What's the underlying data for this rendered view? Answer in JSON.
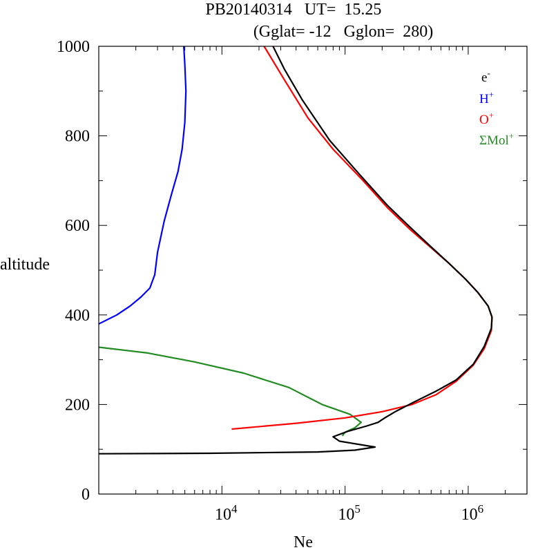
{
  "chart_data": {
    "type": "line",
    "title_line1": "PB20140314   UT=  15.25",
    "title_line2": "(Gglat= -12   Gglon=  280)",
    "xlabel": "Ne",
    "ylabel": "altitude",
    "x_scale": "log",
    "xlim": [
      1000,
      3000000
    ],
    "ylim": [
      0,
      1000
    ],
    "y_ticks": [
      0,
      200,
      400,
      600,
      800,
      1000
    ],
    "x_ticks": [
      {
        "value": 10000,
        "base": "10",
        "exp": "4"
      },
      {
        "value": 100000,
        "base": "10",
        "exp": "5"
      },
      {
        "value": 1000000,
        "base": "10",
        "exp": "6"
      }
    ],
    "legend_position": "top-right",
    "series": [
      {
        "name": "e-",
        "label_base": "e",
        "label_sup": "-",
        "color": "#000000",
        "points": [
          [
            1000,
            90
          ],
          [
            8000,
            91
          ],
          [
            60000,
            94
          ],
          [
            120000,
            98
          ],
          [
            175000,
            105
          ],
          [
            90000,
            118
          ],
          [
            80000,
            128
          ],
          [
            105000,
            140
          ],
          [
            150000,
            152
          ],
          [
            185000,
            160
          ],
          [
            210000,
            170
          ],
          [
            260000,
            185
          ],
          [
            360000,
            205
          ],
          [
            550000,
            230
          ],
          [
            800000,
            255
          ],
          [
            1100000,
            290
          ],
          [
            1350000,
            330
          ],
          [
            1540000,
            370
          ],
          [
            1560000,
            395
          ],
          [
            1450000,
            420
          ],
          [
            1200000,
            450
          ],
          [
            950000,
            480
          ],
          [
            700000,
            515
          ],
          [
            500000,
            552
          ],
          [
            340000,
            595
          ],
          [
            220000,
            645
          ],
          [
            130000,
            715
          ],
          [
            75000,
            790
          ],
          [
            45000,
            880
          ],
          [
            32000,
            950
          ],
          [
            26000,
            1000
          ]
        ]
      },
      {
        "name": "H+",
        "label_base": "H",
        "label_sup": "+",
        "color": "#0000ff",
        "points": [
          [
            1000,
            380
          ],
          [
            1400,
            400
          ],
          [
            1800,
            420
          ],
          [
            2200,
            440
          ],
          [
            2600,
            460
          ],
          [
            2850,
            490
          ],
          [
            3000,
            540
          ],
          [
            3400,
            610
          ],
          [
            3900,
            670
          ],
          [
            4400,
            720
          ],
          [
            4750,
            770
          ],
          [
            5000,
            830
          ],
          [
            5100,
            900
          ],
          [
            5000,
            960
          ],
          [
            4900,
            1000
          ]
        ]
      },
      {
        "name": "O+",
        "label_base": "O",
        "label_sup": "+",
        "color": "#ff0000",
        "points": [
          [
            12000,
            145
          ],
          [
            40000,
            158
          ],
          [
            100000,
            170
          ],
          [
            200000,
            184
          ],
          [
            350000,
            200
          ],
          [
            550000,
            222
          ],
          [
            800000,
            252
          ],
          [
            1100000,
            288
          ],
          [
            1350000,
            325
          ],
          [
            1540000,
            365
          ],
          [
            1560000,
            395
          ],
          [
            1450000,
            420
          ],
          [
            1200000,
            450
          ],
          [
            950000,
            480
          ],
          [
            700000,
            515
          ],
          [
            500000,
            550
          ],
          [
            340000,
            590
          ],
          [
            220000,
            640
          ],
          [
            140000,
            700
          ],
          [
            80000,
            770
          ],
          [
            50000,
            840
          ],
          [
            33000,
            920
          ],
          [
            22000,
            1000
          ]
        ]
      },
      {
        "name": "ΣMol+",
        "label_base": "ΣMol",
        "label_sup": "+",
        "color": "#228b22",
        "points": [
          [
            1000,
            328
          ],
          [
            2500,
            315
          ],
          [
            6000,
            295
          ],
          [
            15000,
            270
          ],
          [
            35000,
            238
          ],
          [
            65000,
            200
          ],
          [
            110000,
            178
          ],
          [
            135000,
            160
          ],
          [
            120000,
            148
          ],
          [
            100000,
            138
          ],
          [
            95000,
            130
          ]
        ]
      }
    ]
  }
}
